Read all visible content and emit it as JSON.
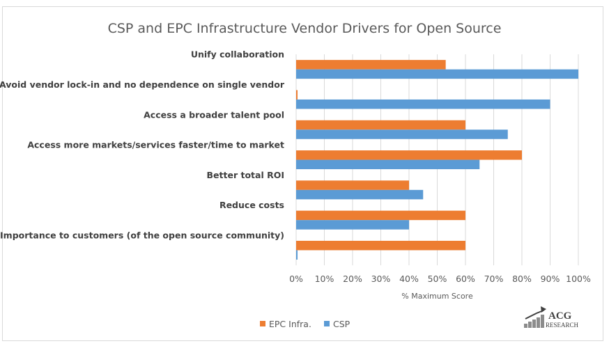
{
  "chart_data": {
    "type": "bar",
    "orientation": "horizontal",
    "title": "CSP and EPC Infrastructure Vendor Drivers for Open Source",
    "xlabel": "% Maximum Score",
    "xlim": [
      0,
      100
    ],
    "x_ticks": [
      "0%",
      "10%",
      "20%",
      "30%",
      "40%",
      "50%",
      "60%",
      "70%",
      "80%",
      "90%",
      "100%"
    ],
    "grid": true,
    "legend_position": "bottom-left",
    "categories": [
      "Unify collaboration",
      "Avoid vendor lock-in and no dependence on single vendor",
      "Access a broader talent pool",
      "Access more markets/services faster/time to market",
      "Better total ROI",
      "Reduce costs",
      "Importance to customers (of the open source community)"
    ],
    "series": [
      {
        "name": "EPC Infra.",
        "color": "#ed7d31",
        "values": [
          53,
          0.5,
          60,
          80,
          40,
          60,
          60
        ]
      },
      {
        "name": "CSP",
        "color": "#5b9bd5",
        "values": [
          100,
          90,
          75,
          65,
          45,
          40,
          0.5
        ]
      }
    ]
  },
  "logo": {
    "line1": "ACG",
    "line2": "RESEARCH"
  }
}
